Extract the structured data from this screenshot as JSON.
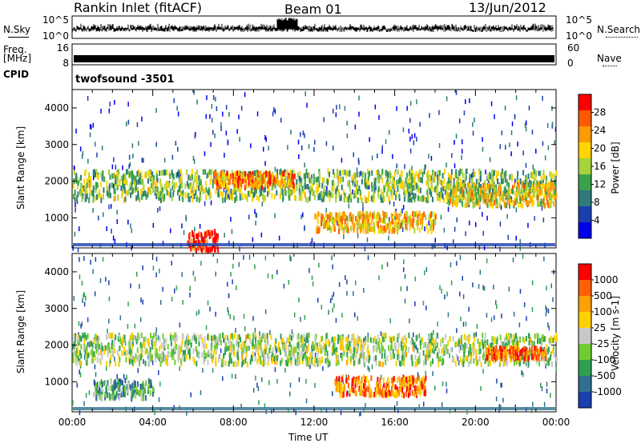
{
  "header": {
    "title": "Rankin Inlet (fitACF)",
    "beam": "Beam 01",
    "date": "13/Jun/2012"
  },
  "strips": {
    "nsky_label": "N.Sky",
    "nsky_ticks": [
      "10^5",
      "10^0"
    ],
    "nsearch_label": "N.Search",
    "nsearch_ticks": [
      "10^5",
      "10^0"
    ],
    "freq_label": "Freq.",
    "freq_unit": "[MHz]",
    "freq_ticks": [
      "16",
      "8"
    ],
    "nave_label": "Nave",
    "nave_ticks": [
      "60",
      "0"
    ],
    "cpid_label": "CPID",
    "cpid_value": "twofsound  -3501"
  },
  "chart_data": [
    {
      "type": "heatmap",
      "name": "power-panel",
      "ylabel": "Slant Range [km]",
      "xlabel": "",
      "ylim": [
        180,
        4500
      ],
      "yticks": [
        "1000",
        "2000",
        "3000",
        "4000"
      ],
      "colorbar_label": "Power [dB]",
      "colorbar_ticks": [
        "28",
        "24",
        "20",
        "16",
        "12",
        "8",
        "4"
      ],
      "colors": [
        "#0000ee",
        "#1a3fb0",
        "#2f7a7a",
        "#3aa24a",
        "#a6d33a",
        "#ffd400",
        "#ff9a00",
        "#ff5a00",
        "#ff0000"
      ],
      "bands": [
        {
          "t0": 0.0,
          "t1": 24.0,
          "r0": 1550,
          "r1": 2350,
          "level": 0.45
        },
        {
          "t0": 7.0,
          "t1": 11.0,
          "r0": 1900,
          "r1": 2300,
          "level": 0.75
        },
        {
          "t0": 18.5,
          "t1": 24.0,
          "r0": 1400,
          "r1": 2000,
          "level": 0.6
        },
        {
          "t0": 12.0,
          "t1": 18.0,
          "r0": 700,
          "r1": 1200,
          "level": 0.65
        },
        {
          "t0": 5.7,
          "t1": 7.2,
          "r0": 180,
          "r1": 700,
          "level": 0.95
        }
      ]
    },
    {
      "type": "heatmap",
      "name": "velocity-panel",
      "ylabel": "Slant Range [km]",
      "xlabel": "Time UT",
      "ylim": [
        180,
        4500
      ],
      "yticks": [
        "1000",
        "2000",
        "3000",
        "4000"
      ],
      "xticks": [
        "00:00",
        "04:00",
        "08:00",
        "12:00",
        "16:00",
        "20:00",
        "00:00"
      ],
      "colorbar_label": "Velocity [m s-1]",
      "colorbar_ticks": [
        "1000",
        "500",
        "100",
        "25",
        "-25",
        "-100",
        "-500",
        "-1000"
      ],
      "colors": [
        "#1a3fb0",
        "#2f6f8f",
        "#2fa050",
        "#70cc30",
        "#c8c8c8",
        "#ffd000",
        "#ffa000",
        "#ff6000",
        "#ff0000"
      ],
      "bands": [
        {
          "t0": 0.0,
          "t1": 24.0,
          "r0": 1550,
          "r1": 2350,
          "level": 0.45
        },
        {
          "t0": 13.0,
          "t1": 17.5,
          "r0": 700,
          "r1": 1200,
          "level": 0.78
        },
        {
          "t0": 20.5,
          "t1": 23.5,
          "r0": 1700,
          "r1": 2000,
          "level": 0.82
        },
        {
          "t0": 1.0,
          "t1": 4.0,
          "r0": 600,
          "r1": 1100,
          "level": 0.3
        }
      ]
    }
  ]
}
